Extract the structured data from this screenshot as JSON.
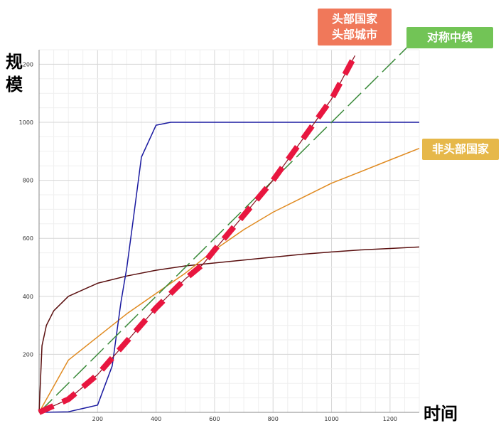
{
  "chart_data": {
    "type": "line",
    "title": "",
    "xlabel": "时间",
    "ylabel": "规模",
    "xlim": [
      0,
      1300
    ],
    "ylim": [
      0,
      1250
    ],
    "x_ticks": [
      200,
      400,
      600,
      800,
      1000,
      1200
    ],
    "y_ticks": [
      200,
      400,
      600,
      800,
      1000,
      1200
    ],
    "grid": true,
    "series": [
      {
        "name": "头部国家 头部城市",
        "color": "#e8163f",
        "style": "thick-dashed",
        "x": [
          0,
          100,
          200,
          300,
          400,
          500,
          560,
          600,
          700,
          800,
          900,
          1000,
          1080
        ],
        "y": [
          0,
          45,
          130,
          245,
          360,
          460,
          510,
          560,
          680,
          800,
          940,
          1080,
          1230
        ]
      },
      {
        "name": "对称中线",
        "color": "#3a8a3a",
        "style": "dashed",
        "x": [
          0,
          1300
        ],
        "y": [
          0,
          1300
        ]
      },
      {
        "name": "",
        "color": "#1a1aa0",
        "style": "solid",
        "x": [
          0,
          100,
          200,
          250,
          280,
          300,
          320,
          350,
          400,
          450,
          500,
          1300
        ],
        "y": [
          0,
          2,
          25,
          160,
          380,
          500,
          650,
          880,
          990,
          1000,
          1000,
          1000
        ]
      },
      {
        "name": "非头部国家",
        "color": "#e08a20",
        "style": "solid",
        "x": [
          0,
          100,
          200,
          300,
          400,
          500,
          600,
          700,
          800,
          900,
          1000,
          1100,
          1200,
          1300
        ],
        "y": [
          0,
          180,
          260,
          340,
          410,
          480,
          560,
          630,
          690,
          740,
          790,
          830,
          870,
          910
        ]
      },
      {
        "name": "",
        "color": "#5a0f0f",
        "style": "solid",
        "x": [
          0,
          10,
          25,
          50,
          100,
          200,
          300,
          400,
          500,
          600,
          700,
          800,
          900,
          1000,
          1100,
          1200,
          1300
        ],
        "y": [
          0,
          230,
          300,
          350,
          400,
          445,
          470,
          490,
          505,
          515,
          525,
          535,
          545,
          553,
          560,
          565,
          570
        ]
      }
    ]
  },
  "labels": {
    "top_line1": "头部国家",
    "top_line2": "头部城市",
    "symmetric": "对称中线",
    "non_head": "非头部国家"
  },
  "colors": {
    "top_tag": "#f0785a",
    "symmetric_tag": "#72c456",
    "non_head_tag": "#e6b84a"
  }
}
